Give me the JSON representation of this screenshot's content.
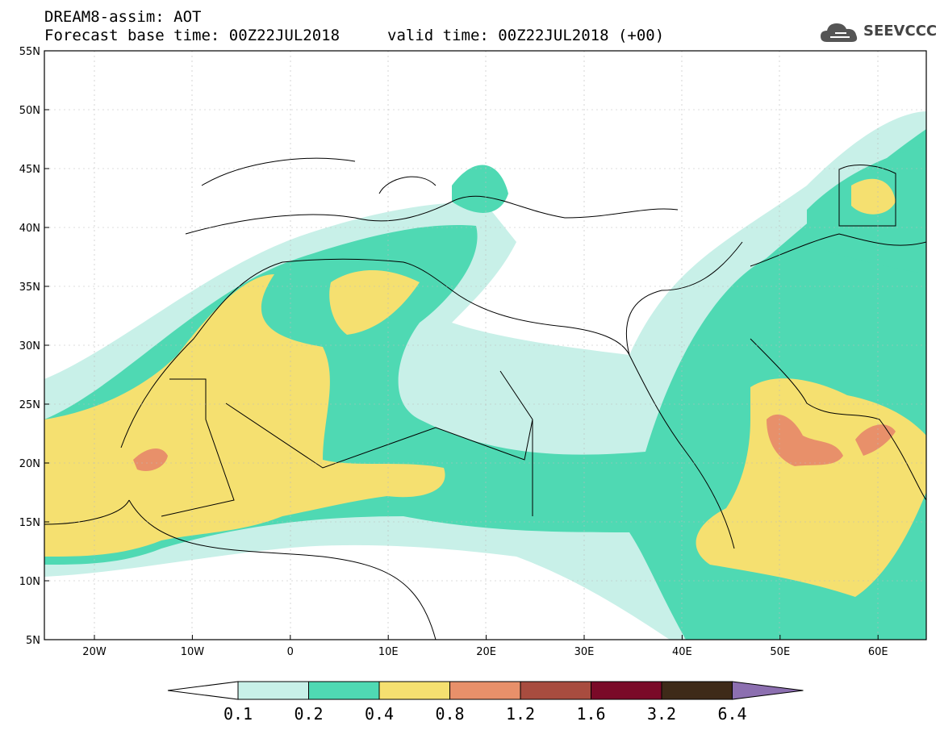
{
  "header": {
    "title": "DREAM8-assim: AOT",
    "base_time": "Forecast base time: 00Z22JUL2018",
    "valid_time": "valid time: 00Z22JUL2018 (+00)",
    "logo_text": "SEEVCCC",
    "logo_icon": "cloud-icon"
  },
  "map": {
    "lat_labels": [
      "55N",
      "50N",
      "45N",
      "40N",
      "35N",
      "30N",
      "25N",
      "20N",
      "15N",
      "10N",
      "5N"
    ],
    "lon_labels": [
      "20W",
      "10W",
      "0",
      "10E",
      "20E",
      "30E",
      "40E",
      "50E",
      "60E"
    ]
  },
  "colorbar": {
    "levels": [
      "0.1",
      "0.2",
      "0.4",
      "0.8",
      "1.2",
      "1.6",
      "3.2",
      "6.4"
    ],
    "colors": [
      "#ffffff",
      "#c8f0e8",
      "#4fd9b3",
      "#f5e070",
      "#e8906a",
      "#a84c3f",
      "#7a0a28",
      "#3e2a18",
      "#8c6fb0"
    ]
  }
}
